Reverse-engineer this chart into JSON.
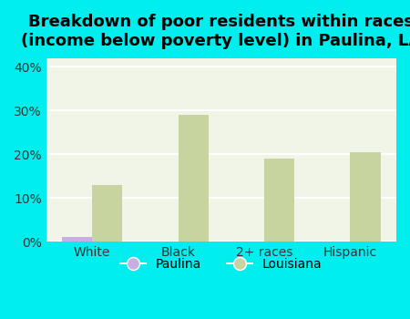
{
  "categories": [
    "White",
    "Black",
    "2+ races",
    "Hispanic"
  ],
  "paulina_values": [
    1.0,
    0,
    0,
    0
  ],
  "louisiana_values": [
    13.0,
    29.0,
    19.0,
    20.5
  ],
  "paulina_color": "#c9aee5",
  "louisiana_color": "#c8d4a0",
  "title": "Breakdown of poor residents within races\n(income below poverty level) in Paulina, LA",
  "ylim": [
    0,
    42
  ],
  "yticks": [
    0,
    10,
    20,
    30,
    40
  ],
  "ytick_labels": [
    "0%",
    "10%",
    "20%",
    "30%",
    "40%"
  ],
  "background_color": "#00eeee",
  "plot_bg_color": "#f0f5e8",
  "grid_color": "#ffffff",
  "title_fontsize": 13,
  "bar_width": 0.35
}
